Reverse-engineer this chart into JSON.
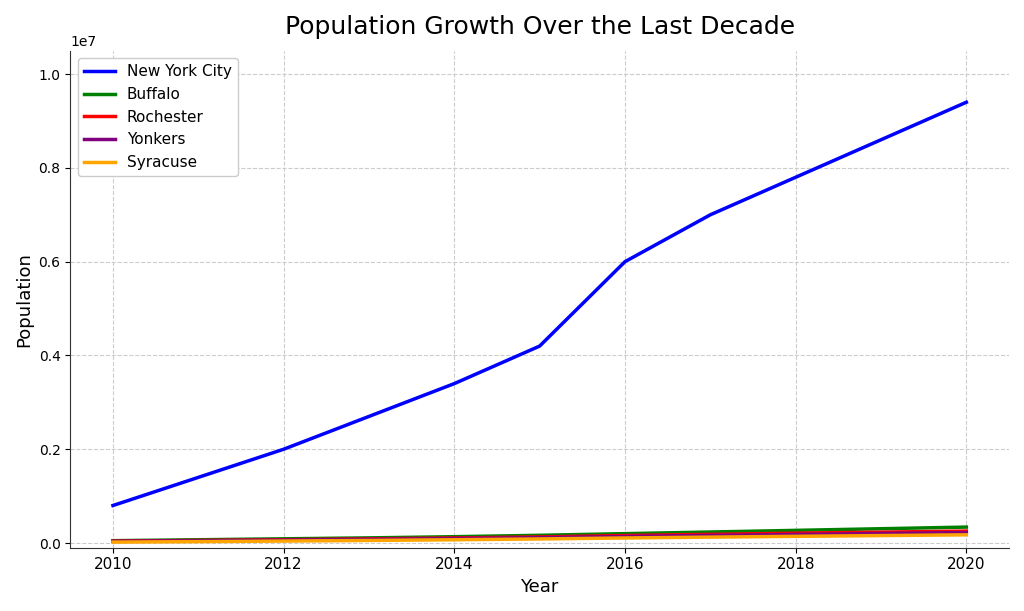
{
  "title": "Population Growth Over the Last Decade",
  "xlabel": "Year",
  "ylabel": "Population",
  "years": [
    2010,
    2011,
    2012,
    2013,
    2014,
    2015,
    2016,
    2017,
    2018,
    2019,
    2020
  ],
  "series": {
    "New York City": {
      "color": "blue",
      "data": [
        800000,
        1400000,
        2000000,
        2700000,
        3400000,
        4200000,
        6000000,
        7000000,
        7800000,
        8600000,
        9400000
      ]
    },
    "Buffalo": {
      "color": "green",
      "data": [
        50000,
        70000,
        90000,
        110000,
        135000,
        165000,
        200000,
        235000,
        270000,
        305000,
        340000
      ]
    },
    "Rochester": {
      "color": "red",
      "data": [
        40000,
        55000,
        70000,
        88000,
        108000,
        130000,
        160000,
        185000,
        210000,
        232000,
        255000
      ]
    },
    "Yonkers": {
      "color": "purple",
      "data": [
        35000,
        48000,
        62000,
        78000,
        95000,
        115000,
        140000,
        162000,
        183000,
        203000,
        222000
      ]
    },
    "Syracuse": {
      "color": "orange",
      "data": [
        20000,
        30000,
        42000,
        55000,
        70000,
        87000,
        108000,
        126000,
        143000,
        159000,
        175000
      ]
    }
  },
  "background_color": "#ffffff",
  "grid_color": "#cccccc",
  "xlim_left": 2009.5,
  "xlim_right": 2020.5,
  "ylim_bottom": -100000,
  "ylim_top": 10500000,
  "yticks": [
    0,
    2000000,
    4000000,
    6000000,
    8000000,
    10000000
  ],
  "xticks": [
    2010,
    2012,
    2014,
    2016,
    2018,
    2020
  ],
  "title_fontsize": 18,
  "label_fontsize": 13,
  "tick_fontsize": 11,
  "legend_fontsize": 11,
  "linewidth": 2.5
}
